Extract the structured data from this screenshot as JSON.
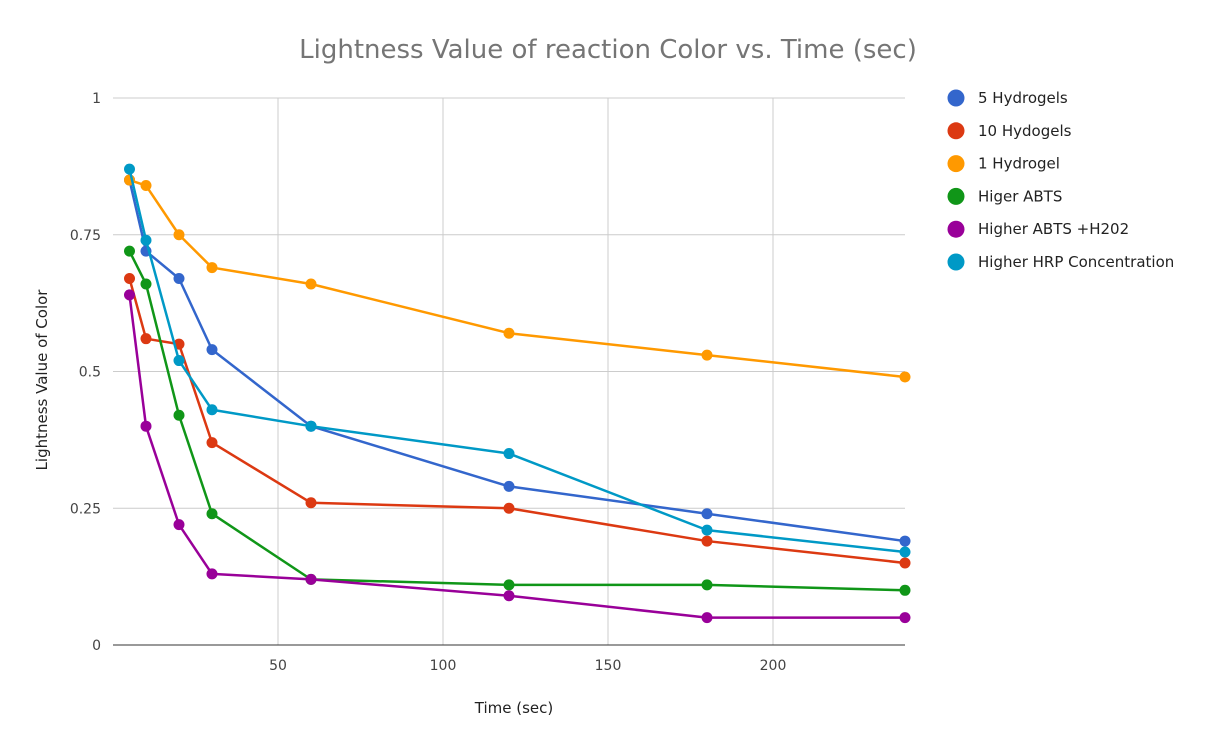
{
  "chart_data": {
    "type": "line",
    "title": "Lightness Value of reaction Color vs. Time (sec)",
    "xlabel": "Time (sec)",
    "ylabel": "Lightness Value of Color",
    "xlim": [
      0,
      240
    ],
    "ylim": [
      0,
      1
    ],
    "x_ticks": [
      50,
      100,
      150,
      200
    ],
    "y_ticks": [
      0,
      0.25,
      0.5,
      0.75,
      1
    ],
    "y_tick_labels": [
      "0",
      "0.25",
      "0.5",
      "0.75",
      "1"
    ],
    "grid": true,
    "legend_position": "right",
    "x": [
      5,
      10,
      20,
      30,
      60,
      120,
      180,
      240
    ],
    "series": [
      {
        "name": "5 Hydrogels",
        "color": "#3366cc",
        "values": [
          0.85,
          0.72,
          0.67,
          0.54,
          0.4,
          0.29,
          0.24,
          0.19
        ]
      },
      {
        "name": "10 Hydogels",
        "color": "#dc3912",
        "values": [
          0.67,
          0.56,
          0.55,
          0.37,
          0.26,
          0.25,
          0.19,
          0.15
        ]
      },
      {
        "name": "1 Hydrogel",
        "color": "#ff9900",
        "values": [
          0.85,
          0.84,
          0.75,
          0.69,
          0.66,
          0.57,
          0.53,
          0.49
        ]
      },
      {
        "name": "Higer ABTS",
        "color": "#109618",
        "values": [
          0.72,
          0.66,
          0.42,
          0.24,
          0.12,
          0.11,
          0.11,
          0.1
        ]
      },
      {
        "name": "Higher ABTS +H202",
        "color": "#990099",
        "values": [
          0.64,
          0.4,
          0.22,
          0.13,
          0.12,
          0.09,
          0.05,
          0.05
        ]
      },
      {
        "name": "Higher HRP Concentration",
        "color": "#0099c6",
        "values": [
          0.87,
          0.74,
          0.52,
          0.43,
          0.4,
          0.35,
          0.21,
          0.17
        ]
      }
    ]
  }
}
